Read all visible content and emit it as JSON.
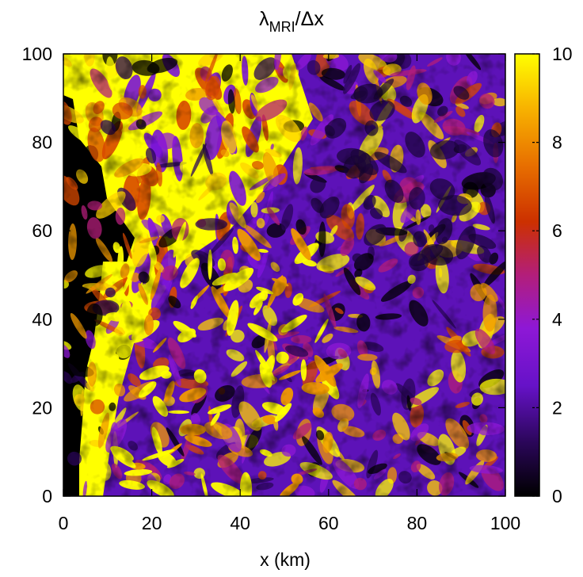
{
  "chart_data": {
    "type": "heatmap",
    "title": {
      "main": "λ",
      "sub": "MRI",
      "rest": "/Δx"
    },
    "xlabel": "x (km)",
    "ylabel": "",
    "xlim": [
      0,
      100
    ],
    "ylim": [
      0,
      100
    ],
    "x_ticks": [
      "0",
      "20",
      "40",
      "60",
      "80",
      "100"
    ],
    "y_ticks": [
      "0",
      "20",
      "40",
      "60",
      "80",
      "100"
    ],
    "colorbar": {
      "range": [
        0,
        10
      ],
      "ticks": [
        "0",
        "2",
        "4",
        "6",
        "8",
        "10"
      ],
      "palette": [
        "#000000",
        "#3a0a78",
        "#7a14d8",
        "#b4208a",
        "#d83a00",
        "#f08c00",
        "#ffd200",
        "#ffff00"
      ]
    },
    "colors": {
      "saturated": "#ffff00",
      "zero": "#000000",
      "background_mid": "#5d12b8"
    }
  }
}
